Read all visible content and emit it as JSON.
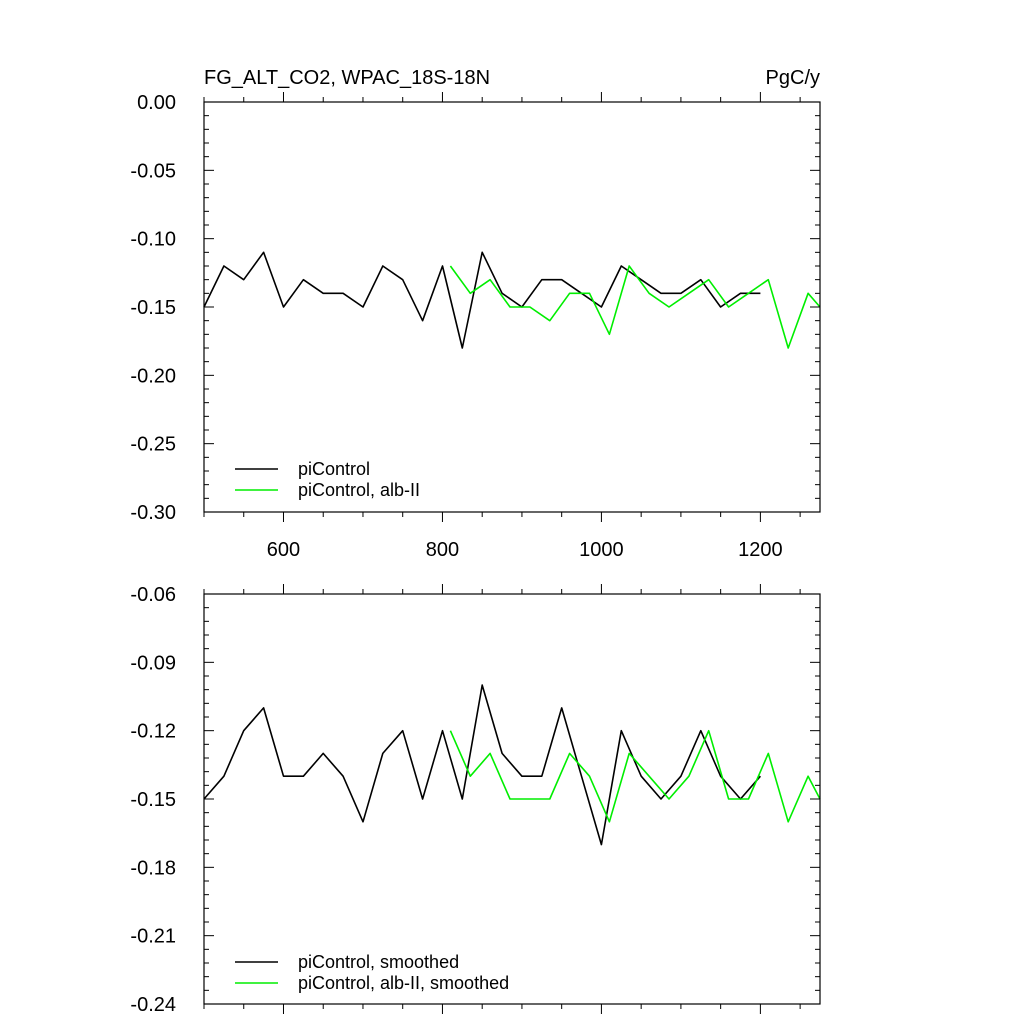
{
  "title_left": "FG_ALT_CO2, WPAC_18S-18N",
  "title_right": "PgC/y",
  "colors": {
    "black": "#000000",
    "green": "#00ee00"
  },
  "chart_data": [
    {
      "type": "line",
      "xlim": [
        500,
        1275
      ],
      "ylim": [
        -0.3,
        0.0
      ],
      "x_ticks": [
        600,
        800,
        1000,
        1200
      ],
      "x_tick_labels": [
        "600",
        "800",
        "1000",
        "1200"
      ],
      "y_ticks": [
        -0.3,
        -0.25,
        -0.2,
        -0.15,
        -0.1,
        -0.05,
        0.0
      ],
      "y_tick_labels": [
        "-0.30",
        "-0.25",
        "-0.20",
        "-0.15",
        "-0.10",
        "-0.05",
        "0.00"
      ],
      "legend": "bottom-left",
      "series": [
        {
          "name": "piControl",
          "color": "#000000",
          "x": [
            500,
            525,
            550,
            575,
            600,
            625,
            650,
            675,
            700,
            725,
            750,
            775,
            800,
            825,
            850,
            875,
            900,
            925,
            950,
            975,
            1000,
            1025,
            1050,
            1075,
            1100,
            1125,
            1150,
            1175,
            1200
          ],
          "y": [
            -0.15,
            -0.12,
            -0.13,
            -0.11,
            -0.15,
            -0.13,
            -0.14,
            -0.14,
            -0.15,
            -0.12,
            -0.13,
            -0.16,
            -0.12,
            -0.18,
            -0.11,
            -0.14,
            -0.15,
            -0.13,
            -0.13,
            -0.14,
            -0.15,
            -0.12,
            -0.13,
            -0.14,
            -0.14,
            -0.13,
            -0.15,
            -0.14,
            -0.14
          ]
        },
        {
          "name": "piControl, alb-II",
          "color": "#00ee00",
          "x": [
            810,
            835,
            860,
            885,
            910,
            935,
            960,
            985,
            1010,
            1035,
            1060,
            1085,
            1110,
            1135,
            1160,
            1185,
            1210,
            1235,
            1260,
            1275
          ],
          "y": [
            -0.12,
            -0.14,
            -0.13,
            -0.15,
            -0.15,
            -0.16,
            -0.14,
            -0.14,
            -0.17,
            -0.12,
            -0.14,
            -0.15,
            -0.14,
            -0.13,
            -0.15,
            -0.14,
            -0.13,
            -0.18,
            -0.14,
            -0.15
          ]
        }
      ]
    },
    {
      "type": "line",
      "xlim": [
        500,
        1275
      ],
      "ylim": [
        -0.24,
        -0.06
      ],
      "x_ticks": [
        600,
        800,
        1000,
        1200
      ],
      "y_ticks": [
        -0.24,
        -0.21,
        -0.18,
        -0.15,
        -0.12,
        -0.09,
        -0.06
      ],
      "y_tick_labels": [
        "-0.24",
        "-0.21",
        "-0.18",
        "-0.15",
        "-0.12",
        "-0.09",
        "-0.06"
      ],
      "legend": "bottom-left",
      "series": [
        {
          "name": "piControl, smoothed",
          "color": "#000000",
          "x": [
            500,
            525,
            550,
            575,
            600,
            625,
            650,
            675,
            700,
            725,
            750,
            775,
            800,
            825,
            850,
            875,
            900,
            925,
            950,
            975,
            1000,
            1025,
            1050,
            1075,
            1100,
            1125,
            1150,
            1175,
            1200
          ],
          "y": [
            -0.15,
            -0.14,
            -0.12,
            -0.11,
            -0.14,
            -0.14,
            -0.13,
            -0.14,
            -0.16,
            -0.13,
            -0.12,
            -0.15,
            -0.12,
            -0.15,
            -0.1,
            -0.13,
            -0.14,
            -0.14,
            -0.11,
            -0.14,
            -0.17,
            -0.12,
            -0.14,
            -0.15,
            -0.14,
            -0.12,
            -0.14,
            -0.15,
            -0.14
          ]
        },
        {
          "name": "piControl, alb-II, smoothed",
          "color": "#00ee00",
          "x": [
            810,
            835,
            860,
            885,
            910,
            935,
            960,
            985,
            1010,
            1035,
            1060,
            1085,
            1110,
            1135,
            1160,
            1185,
            1210,
            1235,
            1260,
            1275
          ],
          "y": [
            -0.12,
            -0.14,
            -0.13,
            -0.15,
            -0.15,
            -0.15,
            -0.13,
            -0.14,
            -0.16,
            -0.13,
            -0.14,
            -0.15,
            -0.14,
            -0.12,
            -0.15,
            -0.15,
            -0.13,
            -0.16,
            -0.14,
            -0.15
          ]
        }
      ]
    }
  ]
}
